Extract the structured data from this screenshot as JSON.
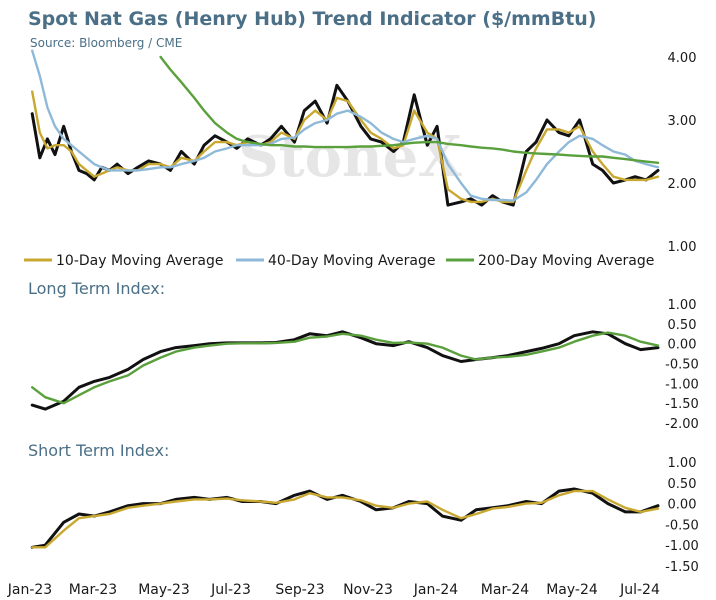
{
  "chart_data": {
    "title": "Spot Nat Gas (Henry Hub) Trend Indicator ($/mmBtu)",
    "subtitle": "Source: Bloomberg / CME",
    "watermark": "StoneX",
    "x_labels": [
      "Jan-23",
      "Mar-23",
      "May-23",
      "Jul-23",
      "Sep-23",
      "Nov-23",
      "Jan-24",
      "Mar-24",
      "May-24",
      "Jul-24"
    ],
    "x_range": [
      "2023-01-01",
      "2024-07-31"
    ],
    "panels": [
      {
        "type": "line",
        "name": "price",
        "title": "",
        "ylim": [
          1.0,
          4.0
        ],
        "y_ticks": [
          "1.00",
          "2.00",
          "3.00",
          "4.00"
        ],
        "x": [
          "2023-01-03",
          "2023-01-10",
          "2023-01-17",
          "2023-01-24",
          "2023-02-01",
          "2023-02-08",
          "2023-02-15",
          "2023-02-22",
          "2023-03-01",
          "2023-03-08",
          "2023-03-15",
          "2023-03-22",
          "2023-04-01",
          "2023-04-10",
          "2023-04-20",
          "2023-05-01",
          "2023-05-10",
          "2023-05-20",
          "2023-06-01",
          "2023-06-10",
          "2023-06-20",
          "2023-07-01",
          "2023-07-10",
          "2023-07-20",
          "2023-08-01",
          "2023-08-10",
          "2023-08-20",
          "2023-09-01",
          "2023-09-10",
          "2023-09-20",
          "2023-10-01",
          "2023-10-10",
          "2023-10-20",
          "2023-11-01",
          "2023-11-10",
          "2023-11-20",
          "2023-12-01",
          "2023-12-10",
          "2023-12-20",
          "2024-01-01",
          "2024-01-10",
          "2024-01-20",
          "2024-02-01",
          "2024-02-10",
          "2024-02-20",
          "2024-03-01",
          "2024-03-10",
          "2024-03-20",
          "2024-04-01",
          "2024-04-10",
          "2024-04-20",
          "2024-05-01",
          "2024-05-10",
          "2024-05-20",
          "2024-06-01",
          "2024-06-10",
          "2024-06-20",
          "2024-07-01",
          "2024-07-10",
          "2024-07-20",
          "2024-07-31"
        ],
        "series": [
          {
            "name": "",
            "role": "spot",
            "color": "#111111",
            "values": [
              3.1,
              2.4,
              2.7,
              2.45,
              2.9,
              2.5,
              2.2,
              2.15,
              2.05,
              2.25,
              2.2,
              2.3,
              2.15,
              2.25,
              2.35,
              2.3,
              2.2,
              2.5,
              2.3,
              2.6,
              2.75,
              2.65,
              2.55,
              2.7,
              2.6,
              2.7,
              2.9,
              2.65,
              3.15,
              3.3,
              2.95,
              3.55,
              3.3,
              2.9,
              2.7,
              2.65,
              2.5,
              2.65,
              3.4,
              2.6,
              2.9,
              1.65,
              1.7,
              1.75,
              1.65,
              1.8,
              1.7,
              1.65,
              2.5,
              2.65,
              3.0,
              2.8,
              2.75,
              3.0,
              2.3,
              2.2,
              2.0,
              2.05,
              2.1,
              2.05,
              2.2
            ]
          },
          {
            "name": "10-Day Moving Average",
            "color": "#c8a830",
            "values": [
              3.45,
              2.8,
              2.55,
              2.6,
              2.6,
              2.5,
              2.3,
              2.2,
              2.1,
              2.15,
              2.2,
              2.25,
              2.2,
              2.2,
              2.3,
              2.3,
              2.25,
              2.4,
              2.35,
              2.5,
              2.65,
              2.65,
              2.6,
              2.65,
              2.6,
              2.65,
              2.8,
              2.7,
              3.0,
              3.15,
              3.0,
              3.35,
              3.3,
              3.0,
              2.8,
              2.7,
              2.55,
              2.6,
              3.15,
              2.8,
              2.7,
              1.9,
              1.75,
              1.7,
              1.7,
              1.75,
              1.7,
              1.7,
              2.2,
              2.55,
              2.85,
              2.85,
              2.8,
              2.9,
              2.5,
              2.3,
              2.1,
              2.05,
              2.05,
              2.05,
              2.1
            ]
          },
          {
            "name": "40-Day Moving Average",
            "color": "#8fb9d8",
            "values": [
              4.1,
              3.7,
              3.2,
              2.9,
              2.7,
              2.6,
              2.5,
              2.4,
              2.3,
              2.25,
              2.2,
              2.2,
              2.2,
              2.2,
              2.22,
              2.25,
              2.25,
              2.3,
              2.35,
              2.4,
              2.5,
              2.55,
              2.6,
              2.6,
              2.6,
              2.62,
              2.7,
              2.72,
              2.85,
              2.95,
              3.0,
              3.1,
              3.15,
              3.05,
              2.95,
              2.8,
              2.7,
              2.65,
              2.7,
              2.75,
              2.7,
              2.3,
              2.0,
              1.8,
              1.75,
              1.73,
              1.73,
              1.72,
              1.85,
              2.05,
              2.3,
              2.5,
              2.65,
              2.75,
              2.7,
              2.6,
              2.5,
              2.45,
              2.35,
              2.3,
              2.25
            ]
          },
          {
            "name": "200-Day Moving Average",
            "color": "#5aa03c",
            "values": [
              null,
              null,
              null,
              null,
              null,
              null,
              null,
              null,
              null,
              null,
              null,
              null,
              null,
              null,
              null,
              4.0,
              3.8,
              3.6,
              3.35,
              3.15,
              2.95,
              2.8,
              2.7,
              2.65,
              2.62,
              2.6,
              2.6,
              2.58,
              2.58,
              2.57,
              2.57,
              2.57,
              2.57,
              2.58,
              2.58,
              2.59,
              2.6,
              2.62,
              2.64,
              2.65,
              2.65,
              2.62,
              2.6,
              2.58,
              2.56,
              2.55,
              2.53,
              2.5,
              2.48,
              2.47,
              2.46,
              2.45,
              2.44,
              2.43,
              2.42,
              2.42,
              2.4,
              2.38,
              2.36,
              2.34,
              2.32
            ]
          }
        ]
      },
      {
        "type": "line",
        "name": "long_term_index",
        "title": "Long Term Index:",
        "ylim": [
          -2.0,
          1.0
        ],
        "y_ticks": [
          "-2.00",
          "-1.50",
          "-1.00",
          "-0.50",
          "0.00",
          "0.50",
          "1.00"
        ],
        "x": [
          "2023-01-03",
          "2023-01-15",
          "2023-02-01",
          "2023-02-15",
          "2023-03-01",
          "2023-03-15",
          "2023-04-01",
          "2023-04-15",
          "2023-05-01",
          "2023-05-15",
          "2023-06-01",
          "2023-06-15",
          "2023-07-01",
          "2023-07-15",
          "2023-08-01",
          "2023-08-15",
          "2023-09-01",
          "2023-09-15",
          "2023-10-01",
          "2023-10-15",
          "2023-11-01",
          "2023-11-15",
          "2023-12-01",
          "2023-12-15",
          "2024-01-01",
          "2024-01-15",
          "2024-02-01",
          "2024-02-15",
          "2024-03-01",
          "2024-03-15",
          "2024-04-01",
          "2024-04-15",
          "2024-05-01",
          "2024-05-15",
          "2024-06-01",
          "2024-06-15",
          "2024-07-01",
          "2024-07-15",
          "2024-07-31"
        ],
        "series": [
          {
            "name": "",
            "role": "index",
            "color": "#111111",
            "values": [
              -1.55,
              -1.65,
              -1.45,
              -1.1,
              -0.95,
              -0.85,
              -0.65,
              -0.4,
              -0.2,
              -0.1,
              -0.05,
              0.0,
              0.02,
              0.02,
              0.02,
              0.03,
              0.1,
              0.25,
              0.2,
              0.3,
              0.15,
              0.0,
              -0.05,
              0.05,
              -0.1,
              -0.3,
              -0.45,
              -0.4,
              -0.35,
              -0.3,
              -0.2,
              -0.12,
              0.0,
              0.2,
              0.3,
              0.25,
              0.0,
              -0.15,
              -0.1
            ]
          },
          {
            "name": "",
            "role": "signal",
            "color": "#5aa03c",
            "values": [
              -1.1,
              -1.35,
              -1.5,
              -1.3,
              -1.1,
              -0.95,
              -0.8,
              -0.55,
              -0.35,
              -0.2,
              -0.1,
              -0.05,
              0.0,
              0.01,
              0.01,
              0.02,
              0.05,
              0.15,
              0.18,
              0.25,
              0.2,
              0.1,
              0.02,
              0.03,
              0.0,
              -0.1,
              -0.3,
              -0.4,
              -0.35,
              -0.33,
              -0.28,
              -0.2,
              -0.1,
              0.05,
              0.2,
              0.28,
              0.2,
              0.05,
              -0.05
            ]
          }
        ]
      },
      {
        "type": "line",
        "name": "short_term_index",
        "title": "Short Term Index:",
        "ylim": [
          -1.5,
          1.0
        ],
        "y_ticks": [
          "-1.50",
          "-1.00",
          "-0.50",
          "0.00",
          "0.50",
          "1.00"
        ],
        "x": [
          "2023-01-03",
          "2023-01-15",
          "2023-02-01",
          "2023-02-15",
          "2023-03-01",
          "2023-03-15",
          "2023-04-01",
          "2023-04-15",
          "2023-05-01",
          "2023-05-15",
          "2023-06-01",
          "2023-06-15",
          "2023-07-01",
          "2023-07-15",
          "2023-08-01",
          "2023-08-15",
          "2023-09-01",
          "2023-09-15",
          "2023-10-01",
          "2023-10-15",
          "2023-11-01",
          "2023-11-15",
          "2023-12-01",
          "2023-12-15",
          "2024-01-01",
          "2024-01-15",
          "2024-02-01",
          "2024-02-15",
          "2024-03-01",
          "2024-03-15",
          "2024-04-01",
          "2024-04-15",
          "2024-05-01",
          "2024-05-15",
          "2024-06-01",
          "2024-06-15",
          "2024-07-01",
          "2024-07-15",
          "2024-07-31"
        ],
        "series": [
          {
            "name": "",
            "role": "index",
            "color": "#111111",
            "values": [
              -1.05,
              -1.0,
              -0.45,
              -0.25,
              -0.3,
              -0.2,
              -0.05,
              0.0,
              0.0,
              0.1,
              0.15,
              0.1,
              0.15,
              0.05,
              0.05,
              0.0,
              0.2,
              0.3,
              0.1,
              0.2,
              0.05,
              -0.15,
              -0.1,
              0.05,
              0.0,
              -0.3,
              -0.4,
              -0.15,
              -0.1,
              -0.05,
              0.05,
              0.0,
              0.3,
              0.35,
              0.25,
              0.0,
              -0.2,
              -0.2,
              -0.05
            ]
          },
          {
            "name": "",
            "role": "signal",
            "color": "#c8a830",
            "values": [
              -1.05,
              -1.05,
              -0.65,
              -0.35,
              -0.3,
              -0.25,
              -0.1,
              -0.05,
              0.0,
              0.05,
              0.1,
              0.1,
              0.12,
              0.08,
              0.05,
              0.02,
              0.1,
              0.25,
              0.15,
              0.15,
              0.08,
              -0.05,
              -0.1,
              0.0,
              0.05,
              -0.15,
              -0.35,
              -0.25,
              -0.12,
              -0.08,
              0.0,
              0.02,
              0.2,
              0.3,
              0.3,
              0.1,
              -0.1,
              -0.2,
              -0.12
            ]
          }
        ]
      }
    ],
    "legend": [
      {
        "label": "10-Day Moving Average",
        "color": "#c8a830"
      },
      {
        "label": "40-Day Moving Average",
        "color": "#8fb9d8"
      },
      {
        "label": "200-Day Moving Average",
        "color": "#5aa03c"
      }
    ]
  }
}
